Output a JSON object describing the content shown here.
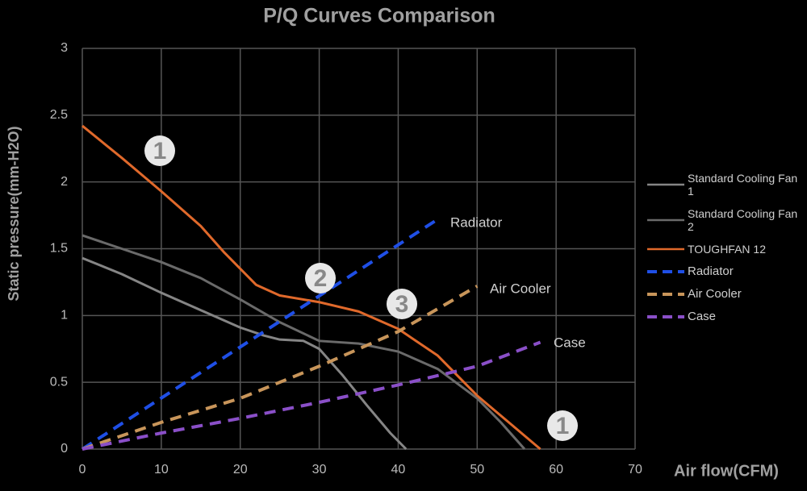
{
  "chart_data": {
    "type": "line",
    "title": "P/Q Curves Comparison",
    "x_label": "Air flow(CFM)",
    "y_label": "Static pressure(mm-H2O)",
    "xlim": [
      0,
      70
    ],
    "xticks": [
      0,
      10,
      20,
      30,
      40,
      50,
      60,
      70
    ],
    "ylim": [
      0,
      3
    ],
    "yticks": [
      0,
      0.5,
      1,
      1.5,
      2,
      2.5,
      3
    ],
    "grid": true,
    "legend": "right",
    "series": [
      {
        "name": "Standard Cooling Fan 1",
        "color": "#858585",
        "dash": false,
        "x": [
          0,
          5,
          10,
          15,
          20,
          23,
          25,
          28,
          30,
          33,
          36,
          39,
          41
        ],
        "values": [
          1.43,
          1.31,
          1.17,
          1.04,
          0.91,
          0.85,
          0.82,
          0.81,
          0.75,
          0.55,
          0.33,
          0.12,
          0
        ]
      },
      {
        "name": "Standard Cooling Fan 2",
        "color": "#6a6a6a",
        "dash": false,
        "x": [
          0,
          5,
          10,
          15,
          20,
          25,
          30,
          35,
          40,
          45,
          50,
          53,
          56
        ],
        "values": [
          1.6,
          1.5,
          1.4,
          1.28,
          1.12,
          0.95,
          0.81,
          0.79,
          0.73,
          0.6,
          0.38,
          0.2,
          0
        ]
      },
      {
        "name": "TOUGHFAN 12",
        "color": "#e0692b",
        "dash": false,
        "x": [
          0,
          5,
          10,
          15,
          18,
          20,
          22,
          25,
          30,
          35,
          40,
          45,
          50,
          55,
          58
        ],
        "values": [
          2.42,
          2.18,
          1.93,
          1.67,
          1.47,
          1.35,
          1.23,
          1.15,
          1.1,
          1.03,
          0.9,
          0.7,
          0.4,
          0.15,
          0
        ]
      },
      {
        "name": "Radiator",
        "color": "#1f4fe6",
        "dash": true,
        "x": [
          0,
          45
        ],
        "values": [
          0,
          1.72
        ]
      },
      {
        "name": "Air Cooler",
        "color": "#c8955a",
        "dash": true,
        "x": [
          0,
          10,
          20,
          30,
          40,
          50
        ],
        "values": [
          0,
          0.2,
          0.38,
          0.62,
          0.88,
          1.22
        ]
      },
      {
        "name": "Case",
        "color": "#8a4fc8",
        "dash": true,
        "x": [
          0,
          10,
          20,
          30,
          40,
          50,
          58
        ],
        "values": [
          0,
          0.12,
          0.23,
          0.35,
          0.48,
          0.62,
          0.8
        ]
      }
    ],
    "annotations": [
      "1",
      "2",
      "3",
      "1",
      "Radiator",
      "Air Cooler",
      "Case"
    ]
  }
}
